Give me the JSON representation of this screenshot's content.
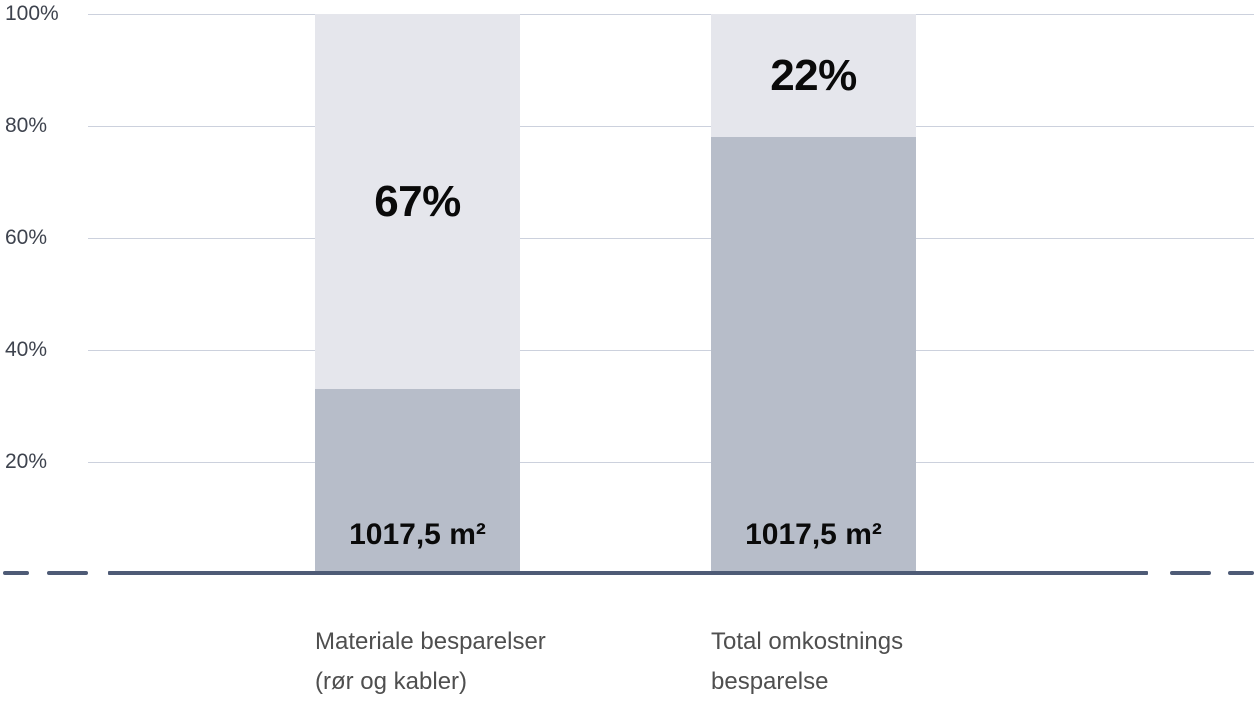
{
  "chart_data": {
    "type": "bar",
    "subtype": "stacked-100-percent-column",
    "title": "",
    "xlabel": "",
    "ylabel": "",
    "ylim": [
      0,
      100
    ],
    "grid": true,
    "legend": false,
    "categories": [
      "Materiale besparelser (rør og kabler)",
      "Total omkostnings besparelse"
    ],
    "series": [
      {
        "name": "bottom-segment",
        "color": "#b7bdc9",
        "values": [
          33,
          78
        ],
        "value_labels": [
          "1017,5 m²",
          "1017,5 m²"
        ]
      },
      {
        "name": "top-segment",
        "color": "#e5e6ec",
        "values": [
          67,
          22
        ],
        "value_labels": [
          "67%",
          "22%"
        ]
      }
    ],
    "y_tick_labels": [
      "100%",
      "80%",
      "60%",
      "40%",
      "20%"
    ],
    "axis_line_color": "#4e5b76",
    "gridline_color": "#ccd1dd"
  },
  "y_axis": {
    "ticks": [
      "100%",
      "80%",
      "60%",
      "40%",
      "20%"
    ]
  },
  "bars": [
    {
      "top_pct": 67,
      "bottom_pct": 33,
      "top_label": "67%",
      "bottom_value_label": "1017,5 m²",
      "category_lines": [
        "Materiale besparelser",
        "(rør og kabler)"
      ]
    },
    {
      "top_pct": 22,
      "bottom_pct": 78,
      "top_label": "22%",
      "bottom_value_label": "1017,5 m²",
      "category_lines": [
        "Total omkostnings",
        "besparelse"
      ]
    }
  ]
}
